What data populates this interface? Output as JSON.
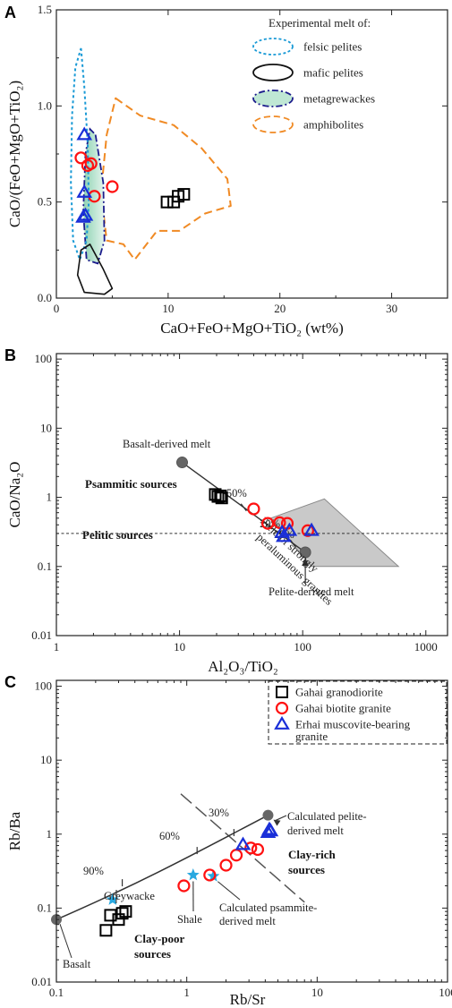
{
  "chart_data": [
    {
      "panel": "A",
      "type": "scatter",
      "xlabel": "CaO+FeO+MgO+TiO₂ (wt%)",
      "ylabel": "CaO/(FeO+MgO+TiO₂)",
      "xlim": [
        0,
        35
      ],
      "ylim": [
        0,
        1.5
      ],
      "xticks": [
        0,
        10,
        20,
        30
      ],
      "yticks": [
        "0.0",
        "0.5",
        "1.0",
        "1.5"
      ],
      "legend": {
        "title": "Experimental melt of:",
        "placement": "top-right",
        "items": [
          {
            "label": "felsic pelites",
            "color": "#1a9ad6",
            "style": "dotted"
          },
          {
            "label": "mafic pelites",
            "color": "#111111",
            "style": "solid"
          },
          {
            "label": "metagrewackes",
            "color": "#1c1c8c",
            "style": "dash-dot",
            "fill": "#b5e3cf"
          },
          {
            "label": "amphibolites",
            "color": "#f08a24",
            "style": "dashed"
          }
        ]
      },
      "fields": [
        {
          "name": "felsic pelites",
          "points": [
            [
              2.2,
              1.3
            ],
            [
              2.5,
              1.1
            ],
            [
              2.8,
              0.8
            ],
            [
              2.9,
              0.5
            ],
            [
              2.7,
              0.3
            ],
            [
              2.1,
              0.2
            ],
            [
              1.5,
              0.3
            ],
            [
              1.3,
              0.6
            ],
            [
              1.4,
              0.95
            ],
            [
              1.7,
              1.2
            ]
          ]
        },
        {
          "name": "mafic pelites",
          "points": [
            [
              3.0,
              0.28
            ],
            [
              4.2,
              0.15
            ],
            [
              5.0,
              0.05
            ],
            [
              4.3,
              0.02
            ],
            [
              2.5,
              0.03
            ],
            [
              1.9,
              0.12
            ],
            [
              2.2,
              0.25
            ]
          ]
        },
        {
          "name": "metagrewackes",
          "points": [
            [
              3.5,
              0.85
            ],
            [
              4.2,
              0.6
            ],
            [
              4.3,
              0.3
            ],
            [
              3.7,
              0.18
            ],
            [
              2.7,
              0.2
            ],
            [
              2.4,
              0.45
            ],
            [
              2.6,
              0.75
            ],
            [
              3.0,
              0.88
            ]
          ]
        },
        {
          "name": "amphibolites",
          "points": [
            [
              5.3,
              1.04
            ],
            [
              7.5,
              0.95
            ],
            [
              10.5,
              0.9
            ],
            [
              13.0,
              0.78
            ],
            [
              15.3,
              0.62
            ],
            [
              15.6,
              0.48
            ],
            [
              13.3,
              0.44
            ],
            [
              11.0,
              0.35
            ],
            [
              9.0,
              0.35
            ],
            [
              7.0,
              0.2
            ],
            [
              6.0,
              0.28
            ],
            [
              4.5,
              0.3
            ],
            [
              4.0,
              0.55
            ],
            [
              4.5,
              0.85
            ]
          ]
        }
      ],
      "series": [
        {
          "name": "Gahai granodiorite",
          "marker": "square",
          "color": "#000000",
          "points": [
            [
              9.9,
              0.5
            ],
            [
              10.5,
              0.5
            ],
            [
              10.9,
              0.53
            ],
            [
              11.4,
              0.54
            ]
          ]
        },
        {
          "name": "Gahai biotite granite",
          "marker": "circle",
          "color": "#ff1111",
          "points": [
            [
              2.2,
              0.73
            ],
            [
              2.8,
              0.69
            ],
            [
              3.1,
              0.7
            ],
            [
              3.4,
              0.53
            ],
            [
              5.0,
              0.58
            ]
          ]
        },
        {
          "name": "Erhai muscovite-bearing granite",
          "marker": "triangle",
          "color": "#1a2fd8",
          "points": [
            [
              2.5,
              0.85
            ],
            [
              2.5,
              0.55
            ],
            [
              2.4,
              0.42
            ],
            [
              2.6,
              0.43
            ]
          ]
        }
      ]
    },
    {
      "panel": "B",
      "type": "scatter",
      "xscale": "log",
      "yscale": "log",
      "xlabel": "Al₂O₃/TiO₂",
      "ylabel": "CaO/Na₂O",
      "xlim": [
        1,
        1500
      ],
      "ylim": [
        0.01,
        120
      ],
      "xticks": [
        "1",
        "10",
        "100",
        "1000"
      ],
      "yticks": [
        "0.01",
        "0.1",
        "1",
        "10",
        "100"
      ],
      "reference_line": {
        "y": 0.3,
        "style": "dotted"
      },
      "mixing_line": {
        "from": [
          10.5,
          3.2
        ],
        "to": [
          105,
          0.16
        ],
        "labels": [
          "50%",
          "20%",
          "10%"
        ]
      },
      "field": {
        "label": "Field of strongly peraluminous granites",
        "points": [
          [
            55,
            0.5
          ],
          [
            150,
            0.95
          ],
          [
            600,
            0.1
          ],
          [
            118,
            0.1
          ]
        ]
      },
      "endmembers": [
        {
          "label": "Basalt-derived melt",
          "x": 10.5,
          "y": 3.2
        },
        {
          "label": "Pelite-derived melt",
          "x": 105,
          "y": 0.16
        }
      ],
      "annotations": [
        "Psammitic sources",
        "Pelitic sources"
      ],
      "series": [
        {
          "name": "Gahai granodiorite",
          "marker": "square",
          "color": "#000000",
          "points": [
            [
              19.5,
              1.1
            ],
            [
              20.5,
              1.03
            ],
            [
              21.5,
              1.05
            ],
            [
              22,
              0.98
            ]
          ]
        },
        {
          "name": "Gahai biotite granite",
          "marker": "circle",
          "color": "#ff1111",
          "points": [
            [
              40,
              0.68
            ],
            [
              52,
              0.42
            ],
            [
              65,
              0.43
            ],
            [
              75,
              0.42
            ],
            [
              110,
              0.33
            ]
          ]
        },
        {
          "name": "Erhai muscovite-bearing granite",
          "marker": "triangle",
          "color": "#1a2fd8",
          "points": [
            [
              68,
              0.31
            ],
            [
              70,
              0.27
            ],
            [
              78,
              0.33
            ],
            [
              118,
              0.33
            ]
          ]
        }
      ]
    },
    {
      "panel": "C",
      "type": "scatter",
      "xscale": "log",
      "yscale": "log",
      "xlabel": "Rb/Sr",
      "ylabel": "Rb/Ba",
      "xlim": [
        0.1,
        100
      ],
      "ylim": [
        0.01,
        120
      ],
      "xticks": [
        "0.1",
        "1",
        "10",
        "100"
      ],
      "yticks": [
        "0.01",
        "0.1",
        "1",
        "10",
        "100"
      ],
      "legend": {
        "placement": "top-right",
        "items": [
          {
            "label": "Gahai granodiorite",
            "marker": "square",
            "color": "#000000"
          },
          {
            "label": "Gahai biotite granite",
            "marker": "circle",
            "color": "#ff1111"
          },
          {
            "label": "Erhai muscovite-bearing",
            "label2": "granite",
            "marker": "triangle",
            "color": "#1a2fd8"
          }
        ]
      },
      "mixing_curve": {
        "points": [
          [
            0.1,
            0.07
          ],
          [
            0.5,
            0.3
          ],
          [
            1.5,
            0.7
          ],
          [
            4.2,
            1.8
          ]
        ],
        "labels": [
          "90%",
          "60%",
          "30%"
        ]
      },
      "divider": {
        "from": [
          0.9,
          3.5
        ],
        "to": [
          8,
          0.12
        ],
        "style": "dashed"
      },
      "endmembers": [
        {
          "label": "Basalt",
          "x": 0.1,
          "y": 0.07
        },
        {
          "label": "Calculated pelite-",
          "label2": "derived melt",
          "x": 4.2,
          "y": 1.8
        }
      ],
      "references": [
        {
          "label": "Greywacke",
          "x": 0.27,
          "y": 0.13
        },
        {
          "label": "Shale",
          "x": 1.12,
          "y": 0.28
        },
        {
          "label": "Calculated psammite-",
          "label2": "derived melt",
          "x": 1.6,
          "y": 0.27
        }
      ],
      "annotations": [
        "Clay-rich",
        "sources",
        "Clay-poor",
        "sources"
      ],
      "series": [
        {
          "name": "Gahai granodiorite",
          "marker": "square",
          "color": "#000000",
          "points": [
            [
              0.24,
              0.05
            ],
            [
              0.26,
              0.08
            ],
            [
              0.3,
              0.07
            ],
            [
              0.32,
              0.085
            ],
            [
              0.34,
              0.09
            ]
          ]
        },
        {
          "name": "Gahai biotite granite",
          "marker": "circle",
          "color": "#ff1111",
          "points": [
            [
              0.95,
              0.2
            ],
            [
              1.5,
              0.28
            ],
            [
              2.0,
              0.38
            ],
            [
              2.4,
              0.52
            ],
            [
              3.1,
              0.65
            ],
            [
              3.5,
              0.62
            ]
          ]
        },
        {
          "name": "Erhai muscovite-bearing granite",
          "marker": "triangle",
          "color": "#1a2fd8",
          "points": [
            [
              2.7,
              0.72
            ],
            [
              4.2,
              1.05
            ],
            [
              4.3,
              1.15
            ],
            [
              4.4,
              1.1
            ]
          ]
        }
      ]
    }
  ]
}
